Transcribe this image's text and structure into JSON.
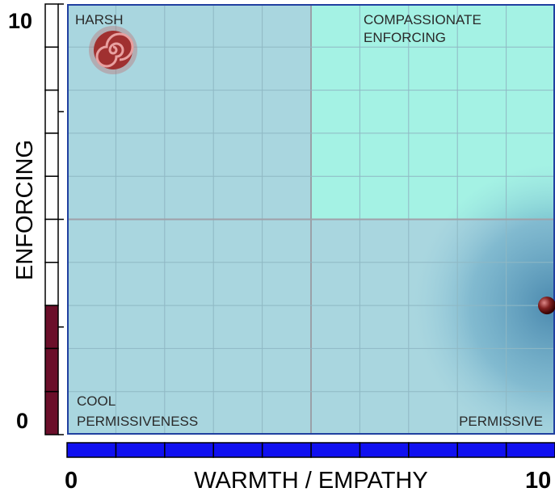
{
  "y_axis": {
    "label": "ENFORCING",
    "min": 0,
    "max": 10,
    "min_label": "0",
    "max_label": "10",
    "segments": 10
  },
  "x_axis": {
    "label": "WARMTH / EMPATHY",
    "min": 0,
    "max": 10,
    "min_label": "0",
    "max_label": "10",
    "segments": 10
  },
  "score": {
    "warmth": 10,
    "enforcing": 3
  },
  "quadrants": {
    "top_left": [
      "HARSH"
    ],
    "top_right": [
      "COMPASSIONATE",
      "ENFORCING"
    ],
    "bottom_left": [
      "COOL",
      "PERMISSIVENESS"
    ],
    "bottom_right": [
      "PERMISSIVE"
    ]
  }
}
